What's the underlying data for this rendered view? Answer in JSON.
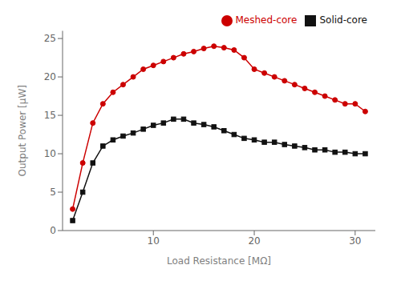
{
  "chart_data": {
    "type": "line",
    "xlabel": "Load Resistance [MΩ]",
    "ylabel": "Output Power [μW]",
    "x": [
      2,
      3,
      4,
      5,
      6,
      7,
      8,
      9,
      10,
      11,
      12,
      13,
      14,
      15,
      16,
      17,
      18,
      19,
      20,
      21,
      22,
      23,
      24,
      25,
      26,
      27,
      28,
      29,
      30,
      31
    ],
    "series": [
      {
        "name": "Meshed-core",
        "color": "#cc0000",
        "marker": "circle",
        "line_style": "solid",
        "values": [
          2.8,
          8.8,
          14.0,
          16.5,
          18.0,
          19.0,
          20.0,
          21.0,
          21.5,
          22.0,
          22.5,
          23.0,
          23.3,
          23.7,
          24.0,
          23.8,
          23.5,
          22.5,
          21.0,
          20.5,
          20.0,
          19.5,
          19.0,
          18.5,
          18.0,
          17.5,
          17.0,
          16.5,
          16.5,
          15.5
        ]
      },
      {
        "name": "Solid-core",
        "color": "#111111",
        "marker": "square",
        "line_style": "solid",
        "values": [
          1.3,
          5.0,
          8.8,
          11.0,
          11.8,
          12.3,
          12.7,
          13.2,
          13.7,
          14.0,
          14.5,
          14.5,
          14.0,
          13.8,
          13.5,
          13.0,
          12.5,
          12.0,
          11.8,
          11.5,
          11.5,
          11.2,
          11.0,
          10.8,
          10.5,
          10.5,
          10.2,
          10.2,
          10.0,
          10.0
        ]
      }
    ],
    "xlim": [
      1,
      32
    ],
    "ylim": [
      0,
      26
    ],
    "xticks": [
      10,
      20,
      30
    ],
    "yticks": [
      0,
      5,
      10,
      15,
      20,
      25
    ],
    "grid": false,
    "legend": "upper right"
  }
}
